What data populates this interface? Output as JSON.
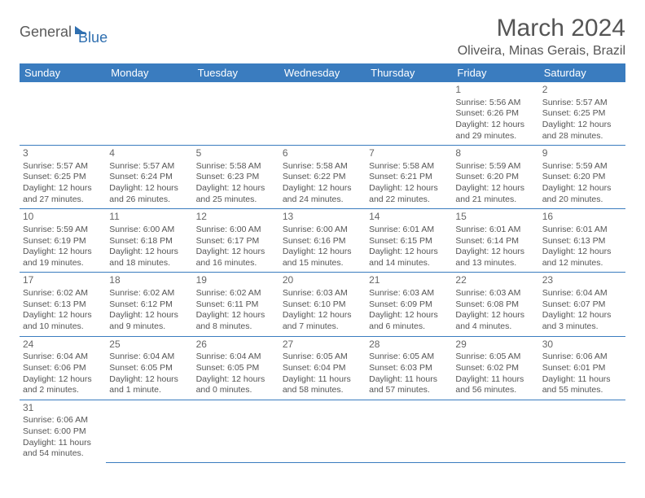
{
  "logo": {
    "part1": "General",
    "part2": "Blue"
  },
  "title": "March 2024",
  "location": "Oliveira, Minas Gerais, Brazil",
  "colors": {
    "header_bg": "#3a7cbf",
    "header_text": "#ffffff",
    "text": "#555555",
    "border": "#3a7cbf"
  },
  "weekdays": [
    "Sunday",
    "Monday",
    "Tuesday",
    "Wednesday",
    "Thursday",
    "Friday",
    "Saturday"
  ],
  "first_weekday_index": 5,
  "days": [
    {
      "n": 1,
      "sr": "5:56 AM",
      "ss": "6:26 PM",
      "dl": "12 hours and 29 minutes."
    },
    {
      "n": 2,
      "sr": "5:57 AM",
      "ss": "6:25 PM",
      "dl": "12 hours and 28 minutes."
    },
    {
      "n": 3,
      "sr": "5:57 AM",
      "ss": "6:25 PM",
      "dl": "12 hours and 27 minutes."
    },
    {
      "n": 4,
      "sr": "5:57 AM",
      "ss": "6:24 PM",
      "dl": "12 hours and 26 minutes."
    },
    {
      "n": 5,
      "sr": "5:58 AM",
      "ss": "6:23 PM",
      "dl": "12 hours and 25 minutes."
    },
    {
      "n": 6,
      "sr": "5:58 AM",
      "ss": "6:22 PM",
      "dl": "12 hours and 24 minutes."
    },
    {
      "n": 7,
      "sr": "5:58 AM",
      "ss": "6:21 PM",
      "dl": "12 hours and 22 minutes."
    },
    {
      "n": 8,
      "sr": "5:59 AM",
      "ss": "6:20 PM",
      "dl": "12 hours and 21 minutes."
    },
    {
      "n": 9,
      "sr": "5:59 AM",
      "ss": "6:20 PM",
      "dl": "12 hours and 20 minutes."
    },
    {
      "n": 10,
      "sr": "5:59 AM",
      "ss": "6:19 PM",
      "dl": "12 hours and 19 minutes."
    },
    {
      "n": 11,
      "sr": "6:00 AM",
      "ss": "6:18 PM",
      "dl": "12 hours and 18 minutes."
    },
    {
      "n": 12,
      "sr": "6:00 AM",
      "ss": "6:17 PM",
      "dl": "12 hours and 16 minutes."
    },
    {
      "n": 13,
      "sr": "6:00 AM",
      "ss": "6:16 PM",
      "dl": "12 hours and 15 minutes."
    },
    {
      "n": 14,
      "sr": "6:01 AM",
      "ss": "6:15 PM",
      "dl": "12 hours and 14 minutes."
    },
    {
      "n": 15,
      "sr": "6:01 AM",
      "ss": "6:14 PM",
      "dl": "12 hours and 13 minutes."
    },
    {
      "n": 16,
      "sr": "6:01 AM",
      "ss": "6:13 PM",
      "dl": "12 hours and 12 minutes."
    },
    {
      "n": 17,
      "sr": "6:02 AM",
      "ss": "6:13 PM",
      "dl": "12 hours and 10 minutes."
    },
    {
      "n": 18,
      "sr": "6:02 AM",
      "ss": "6:12 PM",
      "dl": "12 hours and 9 minutes."
    },
    {
      "n": 19,
      "sr": "6:02 AM",
      "ss": "6:11 PM",
      "dl": "12 hours and 8 minutes."
    },
    {
      "n": 20,
      "sr": "6:03 AM",
      "ss": "6:10 PM",
      "dl": "12 hours and 7 minutes."
    },
    {
      "n": 21,
      "sr": "6:03 AM",
      "ss": "6:09 PM",
      "dl": "12 hours and 6 minutes."
    },
    {
      "n": 22,
      "sr": "6:03 AM",
      "ss": "6:08 PM",
      "dl": "12 hours and 4 minutes."
    },
    {
      "n": 23,
      "sr": "6:04 AM",
      "ss": "6:07 PM",
      "dl": "12 hours and 3 minutes."
    },
    {
      "n": 24,
      "sr": "6:04 AM",
      "ss": "6:06 PM",
      "dl": "12 hours and 2 minutes."
    },
    {
      "n": 25,
      "sr": "6:04 AM",
      "ss": "6:05 PM",
      "dl": "12 hours and 1 minute."
    },
    {
      "n": 26,
      "sr": "6:04 AM",
      "ss": "6:05 PM",
      "dl": "12 hours and 0 minutes."
    },
    {
      "n": 27,
      "sr": "6:05 AM",
      "ss": "6:04 PM",
      "dl": "11 hours and 58 minutes."
    },
    {
      "n": 28,
      "sr": "6:05 AM",
      "ss": "6:03 PM",
      "dl": "11 hours and 57 minutes."
    },
    {
      "n": 29,
      "sr": "6:05 AM",
      "ss": "6:02 PM",
      "dl": "11 hours and 56 minutes."
    },
    {
      "n": 30,
      "sr": "6:06 AM",
      "ss": "6:01 PM",
      "dl": "11 hours and 55 minutes."
    },
    {
      "n": 31,
      "sr": "6:06 AM",
      "ss": "6:00 PM",
      "dl": "11 hours and 54 minutes."
    }
  ],
  "labels": {
    "sunrise": "Sunrise:",
    "sunset": "Sunset:",
    "daylight": "Daylight:"
  }
}
